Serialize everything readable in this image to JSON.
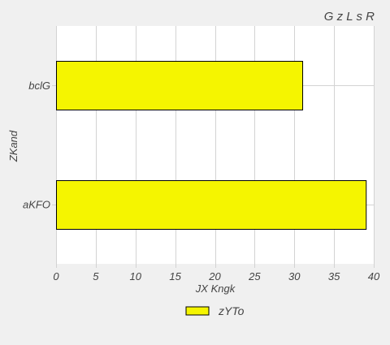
{
  "chart_data": {
    "type": "bar",
    "orientation": "horizontal",
    "title": "G z  L  s R",
    "xlabel": "JX Kngk",
    "ylabel": "ZKand",
    "categories": [
      "bclG",
      "aKFO"
    ],
    "series": [
      {
        "name": "zYTo",
        "values": [
          31,
          39
        ],
        "color": "#f5f500"
      }
    ],
    "xlim": [
      0,
      40
    ],
    "xticks": [
      0,
      5,
      10,
      15,
      20,
      25,
      30,
      35,
      40
    ],
    "grid": true,
    "legend": "bottom-center"
  }
}
